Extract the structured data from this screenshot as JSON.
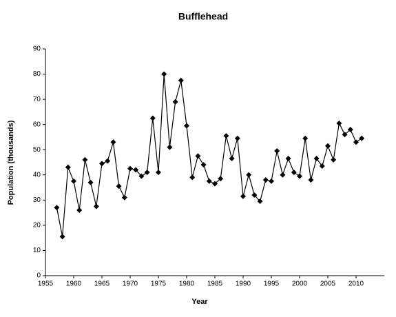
{
  "chart_data": {
    "type": "line",
    "title": "Bufflehead",
    "xlabel": "Year",
    "ylabel": "Population (thousands)",
    "x": [
      1957,
      1958,
      1959,
      1960,
      1961,
      1962,
      1963,
      1964,
      1965,
      1966,
      1967,
      1968,
      1969,
      1970,
      1971,
      1972,
      1973,
      1974,
      1975,
      1976,
      1977,
      1978,
      1979,
      1980,
      1981,
      1982,
      1983,
      1984,
      1985,
      1986,
      1987,
      1988,
      1989,
      1990,
      1991,
      1992,
      1993,
      1994,
      1995,
      1996,
      1997,
      1998,
      1999,
      2000,
      2001,
      2002,
      2003,
      2004,
      2005,
      2006,
      2007,
      2008,
      2009,
      2010,
      2011
    ],
    "values": [
      27,
      15.5,
      43,
      37.5,
      26,
      46,
      37,
      27.5,
      44.5,
      45.5,
      53,
      35.5,
      31,
      42.5,
      42,
      39.5,
      41,
      62.5,
      41,
      80,
      51,
      69,
      77.5,
      59.5,
      39,
      47.5,
      44,
      37.5,
      36.5,
      38.5,
      55.5,
      46.5,
      54.5,
      31.5,
      40,
      32,
      29.5,
      38,
      37.5,
      49.5,
      40,
      46.5,
      41,
      39.5,
      54.5,
      38,
      46.5,
      43.5,
      51.5,
      46,
      60.5,
      56,
      58,
      53,
      54.5
    ],
    "color": "#000000",
    "xlim": [
      1955,
      2015
    ],
    "xticks": [
      1955,
      1960,
      1965,
      1970,
      1975,
      1980,
      1985,
      1990,
      1995,
      2000,
      2005,
      2010
    ],
    "ylim": [
      0,
      90
    ],
    "yticks": [
      0,
      10,
      20,
      30,
      40,
      50,
      60,
      70,
      80,
      90
    ],
    "grid": false
  }
}
